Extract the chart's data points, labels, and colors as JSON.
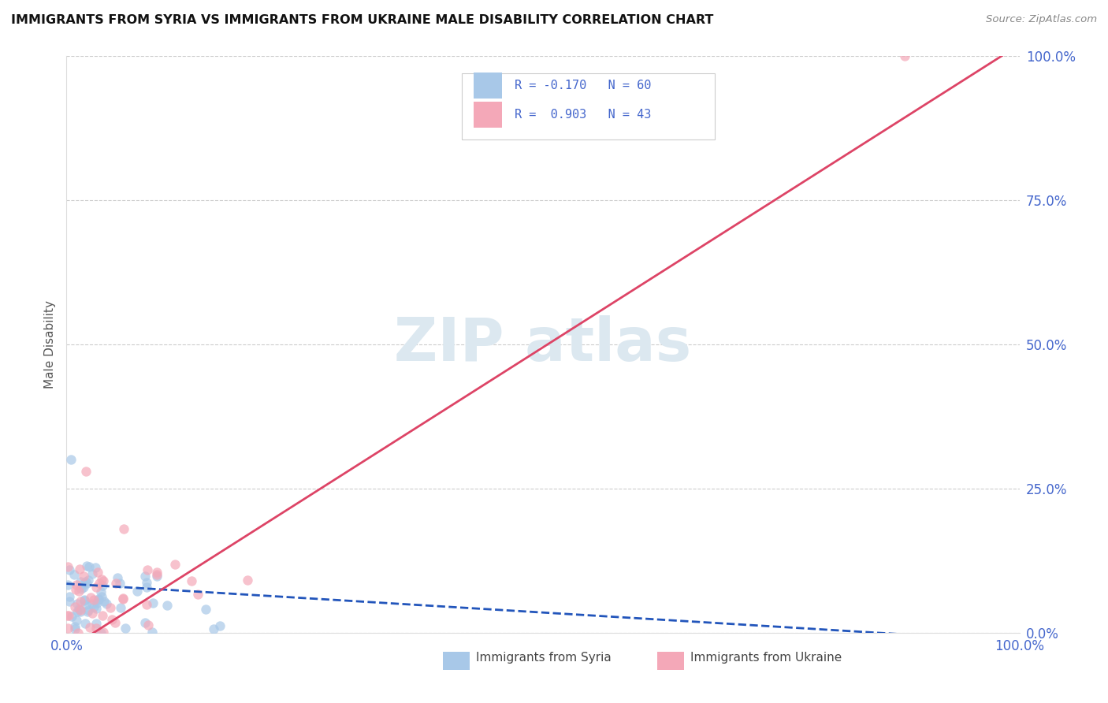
{
  "title": "IMMIGRANTS FROM SYRIA VS IMMIGRANTS FROM UKRAINE MALE DISABILITY CORRELATION CHART",
  "source": "Source: ZipAtlas.com",
  "ylabel": "Male Disability",
  "r_syria": -0.17,
  "n_syria": 60,
  "r_ukraine": 0.903,
  "n_ukraine": 43,
  "syria_color": "#a8c8e8",
  "ukraine_color": "#f4a8b8",
  "syria_line_color": "#2255bb",
  "ukraine_line_color": "#dd4466",
  "background_color": "#ffffff",
  "grid_color": "#cccccc",
  "tick_color": "#4466cc",
  "title_color": "#111111",
  "source_color": "#888888",
  "ylabel_color": "#555555",
  "watermark_color": "#dce8f0",
  "legend_label_syria": "Immigrants from Syria",
  "legend_label_ukraine": "Immigrants from Ukraine"
}
